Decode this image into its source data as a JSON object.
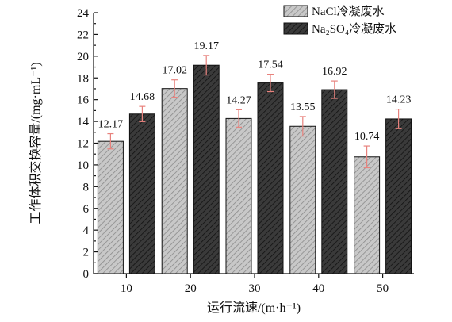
{
  "chart_data": {
    "type": "bar",
    "title": "",
    "xlabel": "运行流速/(m·h⁻¹)",
    "ylabel": "工作体积交换容量/(mg·mL⁻¹)",
    "categories": [
      "10",
      "20",
      "30",
      "40",
      "50"
    ],
    "ylim": [
      0,
      24
    ],
    "yticks": [
      "0",
      "2",
      "4",
      "6",
      "8",
      "10",
      "12",
      "14",
      "16",
      "18",
      "20",
      "22",
      "24"
    ],
    "grid": false,
    "legend_position": "top-right",
    "series": [
      {
        "name": "NaCl冷凝废水",
        "values": [
          12.17,
          17.02,
          14.27,
          13.55,
          10.74
        ],
        "errors": [
          0.7,
          0.8,
          0.8,
          0.9,
          1.0
        ],
        "labels": [
          "12.17",
          "17.02",
          "14.27",
          "13.55",
          "10.74"
        ],
        "color": "#bdbdbd",
        "pattern": "hatched"
      },
      {
        "name": "Na₂SO₄冷凝废水",
        "values": [
          14.68,
          19.17,
          17.54,
          16.92,
          14.23
        ],
        "errors": [
          0.7,
          0.9,
          0.8,
          0.8,
          0.9
        ],
        "labels": [
          "14.68",
          "19.17",
          "17.54",
          "16.92",
          "14.23"
        ],
        "color": "#333333",
        "pattern": "hatched"
      }
    ],
    "error_bar_color": "#e8827d"
  }
}
